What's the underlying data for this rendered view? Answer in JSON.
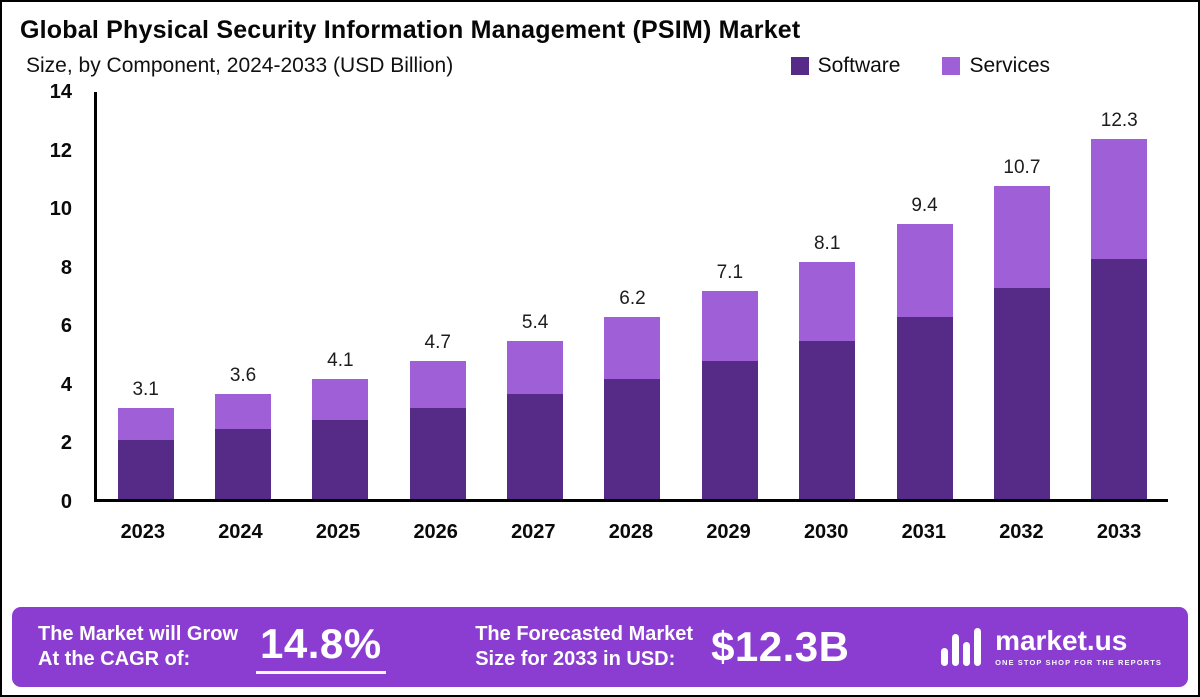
{
  "header": {
    "title": "Global Physical Security Information Management (PSIM) Market",
    "subtitle": "Size, by Component, 2024-2033 (USD Billion)"
  },
  "legend": {
    "software": "Software",
    "services": "Services"
  },
  "chart_data": {
    "type": "bar",
    "stacked": true,
    "title": "Global Physical Security Information Management (PSIM) Market Size, by Component, 2024-2033 (USD Billion)",
    "categories": [
      "2023",
      "2024",
      "2025",
      "2026",
      "2027",
      "2028",
      "2029",
      "2030",
      "2031",
      "2032",
      "2033"
    ],
    "series": [
      {
        "name": "Software",
        "color": "#562a87",
        "values": [
          2.0,
          2.4,
          2.7,
          3.1,
          3.6,
          4.1,
          4.7,
          5.4,
          6.2,
          7.2,
          8.2
        ]
      },
      {
        "name": "Services",
        "color": "#9f5fd6",
        "values": [
          1.1,
          1.2,
          1.4,
          1.6,
          1.8,
          2.1,
          2.4,
          2.7,
          3.2,
          3.5,
          4.1
        ]
      }
    ],
    "totals": [
      "3.1",
      "3.6",
      "4.1",
      "4.7",
      "5.4",
      "6.2",
      "7.1",
      "8.1",
      "9.4",
      "10.7",
      "12.3"
    ],
    "xlabel": "",
    "ylabel": "",
    "ylim": [
      0,
      14
    ],
    "yticks": [
      0,
      2,
      4,
      6,
      8,
      10,
      12,
      14
    ],
    "grid": false,
    "legend_position": "top-right"
  },
  "banner": {
    "cagr_label_line1": "The Market will Grow",
    "cagr_label_line2": "At the CAGR of:",
    "cagr_value": "14.8%",
    "forecast_label_line1": "The Forecasted Market",
    "forecast_label_line2": "Size for 2033 in USD:",
    "forecast_value": "$12.3B",
    "brand": "market.us",
    "brand_tagline": "ONE STOP SHOP FOR THE REPORTS",
    "background": "#8a3dd0"
  }
}
